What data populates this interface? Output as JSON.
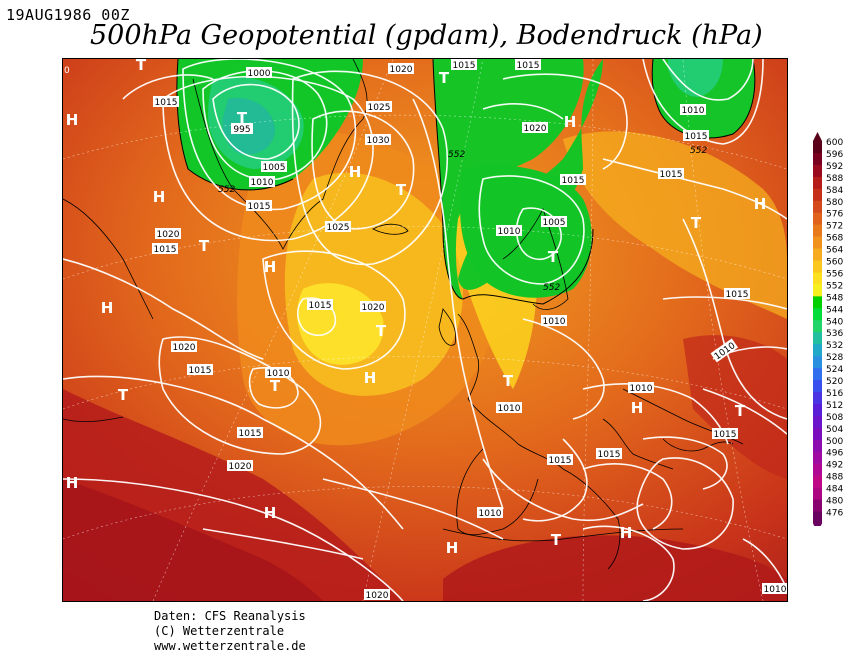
{
  "header": {
    "date": "19AUG1986 00Z",
    "title": "500hPa Geopotential (gpdam), Bodendruck (hPa)"
  },
  "legend": {
    "labels": [
      "600",
      "596",
      "592",
      "588",
      "584",
      "580",
      "576",
      "572",
      "568",
      "564",
      "560",
      "556",
      "552",
      "548",
      "544",
      "540",
      "536",
      "532",
      "528",
      "524",
      "520",
      "516",
      "512",
      "508",
      "504",
      "500",
      "496",
      "492",
      "488",
      "484",
      "480",
      "476"
    ],
    "colors": [
      "#5a0018",
      "#7a0020",
      "#9a0a1e",
      "#b41d1a",
      "#c6301a",
      "#d44a1c",
      "#e0621c",
      "#e87a1c",
      "#f0921c",
      "#f6ac1e",
      "#fbc61e",
      "#fde020",
      "#f7f020",
      "#00d000",
      "#00dd3a",
      "#22d46a",
      "#22c0a0",
      "#22a8c8",
      "#2a90e0",
      "#3070ee",
      "#3a50ee",
      "#4a34e4",
      "#5a1ed8",
      "#6a14cc",
      "#7a0ebe",
      "#8c0cb0",
      "#9e0aa2",
      "#b00894",
      "#c00886",
      "#ae0680",
      "#8a0470",
      "#6a0260"
    ]
  },
  "isobars": [
    "1000",
    "995",
    "1005",
    "1010",
    "1015",
    "1020",
    "1015",
    "1025",
    "1030",
    "1020",
    "1015",
    "1015",
    "1020",
    "1010",
    "1015",
    "1025",
    "1020",
    "1015",
    "1020",
    "1015",
    "1010",
    "1015",
    "1020",
    "1020",
    "1015",
    "1010",
    "1005",
    "1010",
    "1015",
    "1010",
    "1015",
    "1015",
    "1010",
    "1010",
    "1015",
    "1015",
    "1015",
    "1010"
  ],
  "geopotential_labels": [
    "552",
    "552",
    "552",
    "552"
  ],
  "pressure_centers": [
    "H",
    "H",
    "H",
    "H",
    "H",
    "H",
    "H",
    "H",
    "H",
    "H",
    "H",
    "T",
    "T",
    "T",
    "T",
    "T",
    "T",
    "T",
    "T",
    "T",
    "T",
    "T",
    "T",
    "T"
  ],
  "credits": {
    "line1": "Daten: CFS Reanalysis",
    "line2": "(C) Wetterzentrale",
    "line3": "www.wetterzentrale.de"
  },
  "corner_label": "0"
}
